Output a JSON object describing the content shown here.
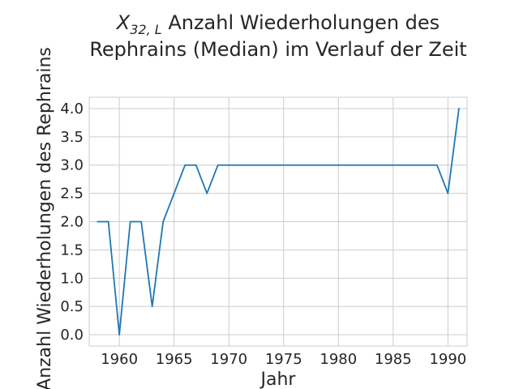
{
  "chart_data": {
    "type": "line",
    "title_line1_math": "X",
    "title_line1_sub": "32, L",
    "title_line1_text": " Anzahl Wiederholungen des",
    "title_line2": "Rephrains (Median) im Verlauf der Zeit",
    "xlabel": "Jahr",
    "ylabel": "Anzahl Wiederholungen des Rephrains",
    "xlim": [
      1957.25,
      1991.75
    ],
    "ylim": [
      -0.2,
      4.2
    ],
    "x_ticks": [
      1960,
      1965,
      1970,
      1975,
      1980,
      1985,
      1990
    ],
    "y_ticks": [
      0.0,
      0.5,
      1.0,
      1.5,
      2.0,
      2.5,
      3.0,
      3.5,
      4.0
    ],
    "x_tick_labels": [
      "1960",
      "1965",
      "1970",
      "1975",
      "1980",
      "1985",
      "1990"
    ],
    "y_tick_labels": [
      "0.0",
      "0.5",
      "1.0",
      "1.5",
      "2.0",
      "2.5",
      "3.0",
      "3.5",
      "4.0"
    ],
    "grid": true,
    "series": [
      {
        "color": "#1f77b4",
        "x": [
          1958,
          1959,
          1960,
          1961,
          1962,
          1963,
          1964,
          1965,
          1966,
          1967,
          1968,
          1969,
          1970,
          1971,
          1972,
          1973,
          1974,
          1975,
          1976,
          1977,
          1978,
          1979,
          1980,
          1981,
          1982,
          1983,
          1984,
          1985,
          1986,
          1987,
          1988,
          1989,
          1990,
          1991
        ],
        "y": [
          2.0,
          2.0,
          0.0,
          2.0,
          2.0,
          0.5,
          2.0,
          2.5,
          3.0,
          3.0,
          2.5,
          3.0,
          3.0,
          3.0,
          3.0,
          3.0,
          3.0,
          3.0,
          3.0,
          3.0,
          3.0,
          3.0,
          3.0,
          3.0,
          3.0,
          3.0,
          3.0,
          3.0,
          3.0,
          3.0,
          3.0,
          3.0,
          2.5,
          4.0
        ]
      }
    ]
  }
}
